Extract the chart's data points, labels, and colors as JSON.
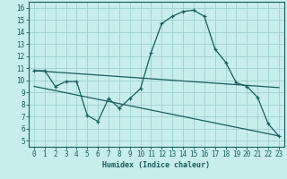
{
  "xlabel": "Humidex (Indice chaleur)",
  "ylabel": "",
  "bg_color": "#c8eded",
  "grid_color": "#9ecece",
  "line_color": "#1a5c5c",
  "xlim": [
    -0.5,
    23.5
  ],
  "ylim": [
    4.5,
    16.5
  ],
  "xticks": [
    0,
    1,
    2,
    3,
    4,
    5,
    6,
    7,
    8,
    9,
    10,
    11,
    12,
    13,
    14,
    15,
    16,
    17,
    18,
    19,
    20,
    21,
    22,
    23
  ],
  "yticks": [
    5,
    6,
    7,
    8,
    9,
    10,
    11,
    12,
    13,
    14,
    15,
    16
  ],
  "curve1_x": [
    0,
    1,
    2,
    3,
    4,
    5,
    6,
    7,
    8,
    9,
    10,
    11,
    12,
    13,
    14,
    15,
    16,
    17,
    18,
    19,
    20,
    21,
    22,
    23
  ],
  "curve1_y": [
    10.8,
    10.8,
    9.5,
    9.9,
    9.9,
    7.1,
    6.6,
    8.5,
    7.7,
    8.5,
    9.3,
    12.3,
    14.7,
    15.3,
    15.7,
    15.8,
    15.3,
    12.6,
    11.5,
    9.8,
    9.5,
    8.6,
    6.4,
    5.4
  ],
  "curve2_x": [
    0,
    23
  ],
  "curve2_y": [
    10.8,
    9.4
  ],
  "curve3_x": [
    0,
    23
  ],
  "curve3_y": [
    9.5,
    5.4
  ]
}
